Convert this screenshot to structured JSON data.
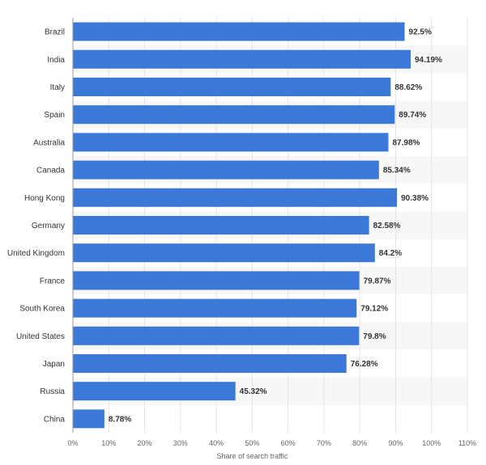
{
  "chart_data": {
    "type": "bar",
    "orientation": "horizontal",
    "categories": [
      "Brazil",
      "India",
      "Italy",
      "Spain",
      "Australia",
      "Canada",
      "Hong Kong",
      "Germany",
      "United Kingdom",
      "France",
      "South Korea",
      "United States",
      "Japan",
      "Russia",
      "China"
    ],
    "values": [
      92.5,
      94.19,
      88.62,
      89.74,
      87.98,
      85.34,
      90.38,
      82.58,
      84.2,
      79.87,
      79.12,
      79.8,
      76.28,
      45.32,
      8.78
    ],
    "value_labels": [
      "92.5%",
      "94.19%",
      "88.62%",
      "89.74%",
      "87.98%",
      "85.34%",
      "90.38%",
      "82.58%",
      "84.2%",
      "79.87%",
      "79.12%",
      "79.8%",
      "76.28%",
      "45.32%",
      "8.78%"
    ],
    "xlabel": "Share of search traffic",
    "ylabel": "",
    "xlim": [
      0,
      110
    ],
    "x_ticks": [
      0,
      10,
      20,
      30,
      40,
      50,
      60,
      70,
      80,
      90,
      100,
      110
    ],
    "x_tick_labels": [
      "0%",
      "10%",
      "20%",
      "30%",
      "40%",
      "50%",
      "60%",
      "70%",
      "80%",
      "90%",
      "100%",
      "110%"
    ],
    "grid": true,
    "bar_color": "#3c78d8",
    "band_color": "#f7f7f7",
    "grid_color": "#e4e4e4"
  }
}
